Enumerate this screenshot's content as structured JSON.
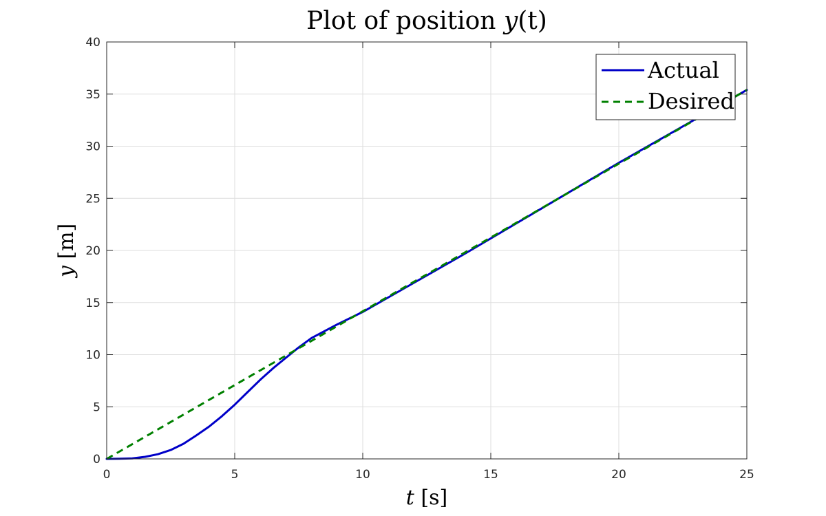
{
  "chart_data": {
    "type": "line",
    "title_prefix": "Plot of position ",
    "title_var": "y",
    "title_suffix": "(t)",
    "xlabel_var": "t",
    "xlabel_unit": " [s]",
    "ylabel_var": "y",
    "ylabel_unit": " [m]",
    "xlim": [
      0,
      25
    ],
    "ylim": [
      0,
      40
    ],
    "x_ticks": [
      "0",
      "5",
      "10",
      "15",
      "20",
      "25"
    ],
    "y_ticks": [
      "0",
      "5",
      "10",
      "15",
      "20",
      "25",
      "30",
      "35",
      "40"
    ],
    "grid": true,
    "legend_position": "top-right",
    "series": [
      {
        "name": "Actual",
        "color": "#0000c8",
        "style": "solid",
        "x": [
          0,
          0.5,
          1,
          1.5,
          2,
          2.5,
          3,
          3.5,
          4,
          4.5,
          5,
          5.5,
          6,
          6.5,
          7,
          7.5,
          8,
          9,
          10,
          12,
          14,
          16,
          18,
          20,
          22,
          24,
          25
        ],
        "y": [
          0,
          0.01,
          0.05,
          0.2,
          0.45,
          0.85,
          1.45,
          2.25,
          3.1,
          4.1,
          5.2,
          6.4,
          7.6,
          8.7,
          9.7,
          10.7,
          11.6,
          12.9,
          14.1,
          16.9,
          19.7,
          22.6,
          25.5,
          28.4,
          31.2,
          34.0,
          35.4
        ]
      },
      {
        "name": "Desired",
        "color": "#008000",
        "style": "dashed",
        "x": [
          0,
          25
        ],
        "y": [
          0,
          35.4
        ]
      }
    ]
  }
}
